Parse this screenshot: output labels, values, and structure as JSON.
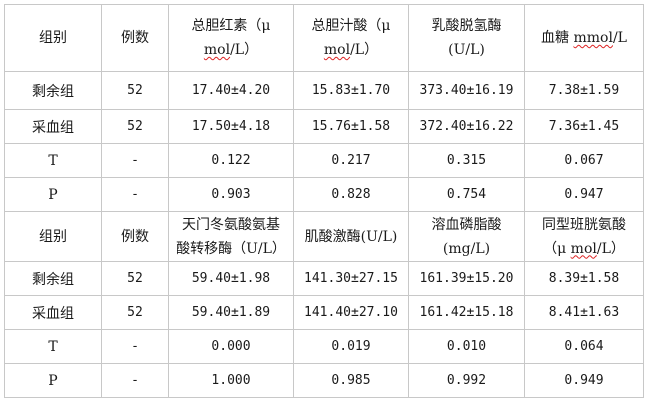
{
  "table": {
    "section1": {
      "header": {
        "group": "组别",
        "count": "例数",
        "col1_line1": "总胆红素（μ",
        "col1_line2_a": "mol",
        "col1_line2_b": "/L）",
        "col2_line1": "总胆汁酸（μ",
        "col2_line2_a": "mol",
        "col2_line2_b": "/L）",
        "col3_line1": "乳酸脱氢酶",
        "col3_line2": "(U/L)",
        "col4_a": "血糖 ",
        "col4_b": "mmol",
        "col4_c": "/L"
      },
      "rows": [
        {
          "group": "剩余组",
          "count": "52",
          "v1": "17.40±4.20",
          "v2": "15.83±1.70",
          "v3": "373.40±16.19",
          "v4": "7.38±1.59"
        },
        {
          "group": "采血组",
          "count": "52",
          "v1": "17.50±4.18",
          "v2": "15.76±1.58",
          "v3": "372.40±16.22",
          "v4": "7.36±1.45"
        },
        {
          "group": "T",
          "count": "-",
          "v1": "0.122",
          "v2": "0.217",
          "v3": "0.315",
          "v4": "0.067"
        },
        {
          "group": "P",
          "count": "-",
          "v1": "0.903",
          "v2": "0.828",
          "v3": "0.754",
          "v4": "0.947"
        }
      ]
    },
    "section2": {
      "header": {
        "group": "组别",
        "count": "例数",
        "col1_line1": "天门冬氨酸氨基",
        "col1_line2": "酸转移酶（U/L）",
        "col2": "肌酸激酶(U/L)",
        "col3_line1": "溶血磷脂酸",
        "col3_line2": "(mg/L)",
        "col4_line1": "同型班胱氨酸",
        "col4_line2_a": "（μ ",
        "col4_line2_b": "mol",
        "col4_line2_c": "/L）"
      },
      "rows": [
        {
          "group": "剩余组",
          "count": "52",
          "v1": "59.40±1.98",
          "v2": "141.30±27.15",
          "v3": "161.39±15.20",
          "v4": "8.39±1.58"
        },
        {
          "group": "采血组",
          "count": "52",
          "v1": "59.40±1.89",
          "v2": "141.40±27.10",
          "v3": "161.42±15.18",
          "v4": "8.41±1.63"
        },
        {
          "group": "T",
          "count": "-",
          "v1": "0.000",
          "v2": "0.019",
          "v3": "0.010",
          "v4": "0.064"
        },
        {
          "group": "P",
          "count": "-",
          "v1": "1.000",
          "v2": "0.985",
          "v3": "0.992",
          "v4": "0.949"
        }
      ]
    }
  }
}
